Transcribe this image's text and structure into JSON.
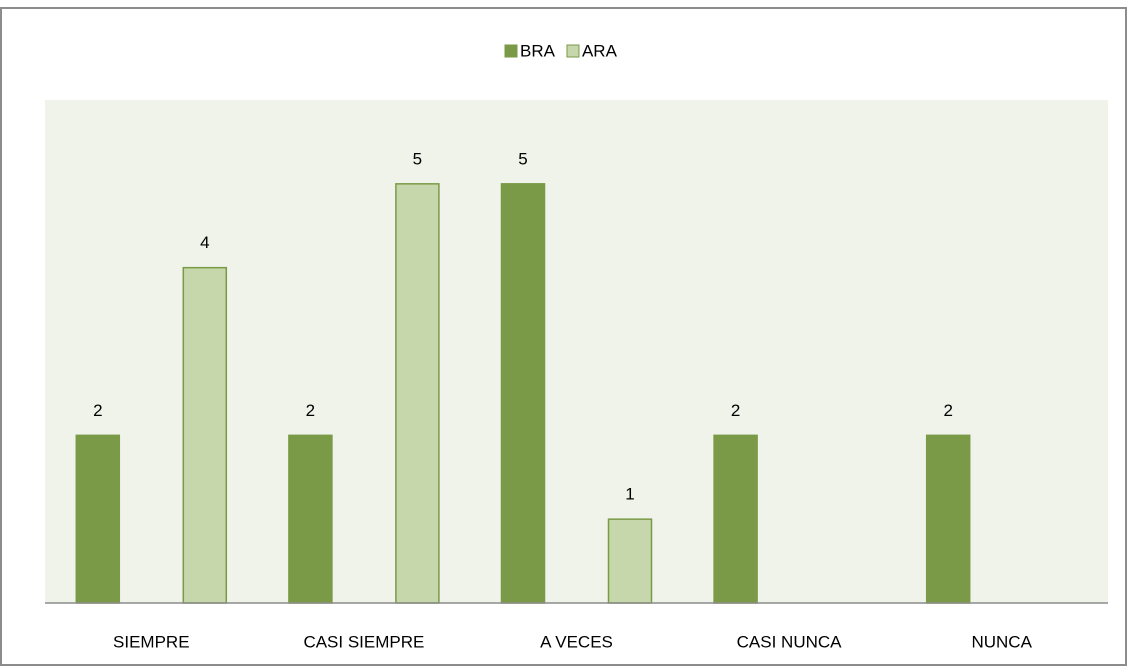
{
  "chart_data": {
    "type": "bar",
    "categories": [
      "SIEMPRE",
      "CASI SIEMPRE",
      "A VECES",
      "CASI NUNCA",
      "NUNCA"
    ],
    "series": [
      {
        "name": "BRA",
        "color": "#7b9a47",
        "values": [
          2,
          2,
          5,
          2,
          2
        ]
      },
      {
        "name": "ARA",
        "color": "#c5d7ab",
        "values": [
          4,
          5,
          1,
          null,
          null
        ]
      }
    ],
    "ylim": [
      0,
      6
    ],
    "legend": "top"
  }
}
